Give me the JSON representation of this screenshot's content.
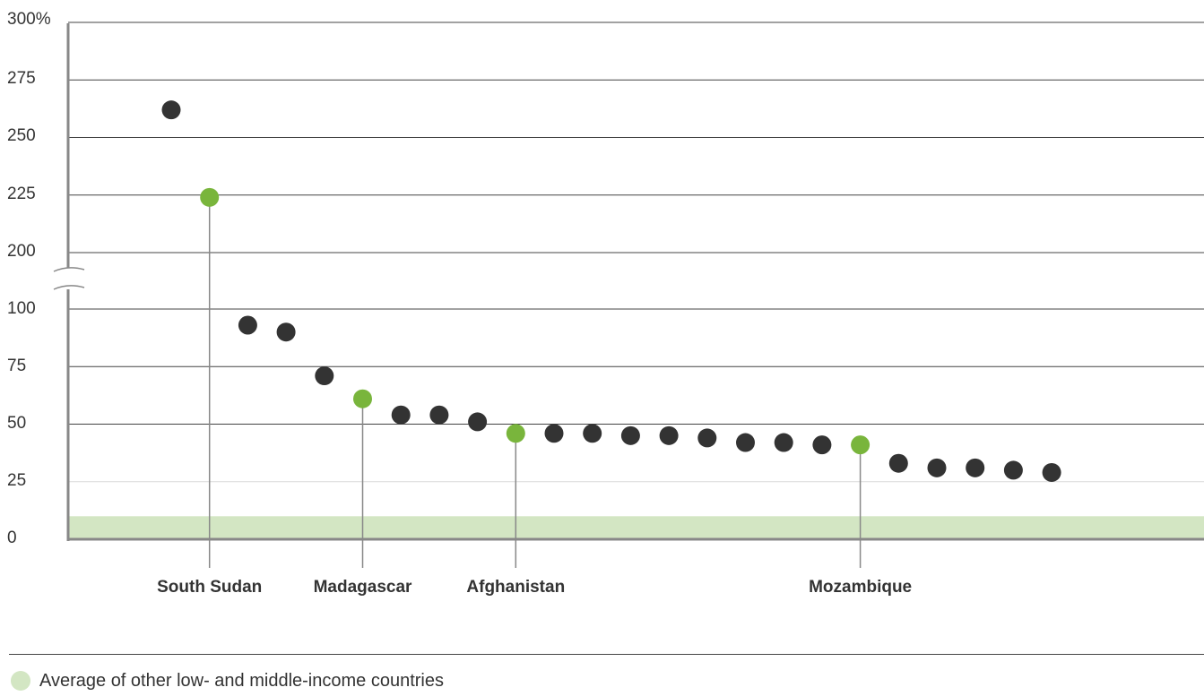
{
  "chart_data": {
    "type": "scatter",
    "y_ticks": [
      "300%",
      "275",
      "250",
      "225",
      "200",
      "100",
      "75",
      "50",
      "25",
      "0"
    ],
    "axis_break_between": [
      100,
      200
    ],
    "reference_band": {
      "label": "Average of other low- and middle-income countries",
      "value": 10
    },
    "series": [
      {
        "values": [
          262,
          224,
          93,
          90,
          71,
          61,
          54,
          54,
          51,
          46,
          46,
          46,
          45,
          45,
          44,
          42,
          42,
          41,
          41,
          33,
          31,
          31,
          30,
          29
        ],
        "highlight_index": [
          1,
          5,
          9,
          18
        ]
      }
    ],
    "labels": [
      "South Sudan",
      "Madagascar",
      "Afghanistan",
      "Mozambique"
    ],
    "colors": {
      "dot": "#333333",
      "highlight": "#79b53c",
      "band": "#d3e6c3",
      "grid": "#444444",
      "grid_light": "#d9d9d9",
      "axis": "#888888"
    }
  }
}
